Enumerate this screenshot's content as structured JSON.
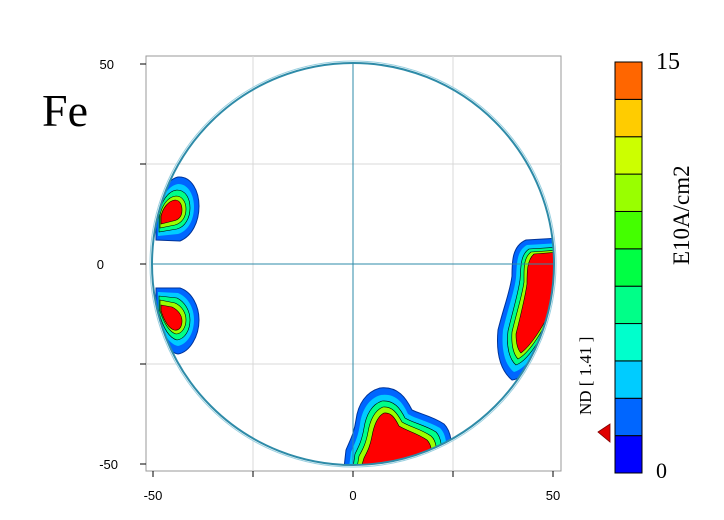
{
  "chart_data": {
    "type": "heatmap",
    "subtype": "pole-figure",
    "element_label": "Fe",
    "x_ticks": [
      "-50",
      "0",
      "50"
    ],
    "y_ticks": [
      "50",
      "0",
      "-50"
    ],
    "xlim": [
      -50,
      50
    ],
    "ylim": [
      -50,
      50
    ],
    "grid": true,
    "colorbar": {
      "max_label": "15",
      "min_label": "0",
      "unit_label": "E10A/cm2",
      "vmin": 0,
      "vmax": 15,
      "colors": [
        "#0000ff",
        "#0066ff",
        "#00ccff",
        "#00ffcc",
        "#00ff88",
        "#00ff44",
        "#44ff00",
        "#99ff00",
        "#ccff00",
        "#ffcc00",
        "#ff6600"
      ]
    },
    "direction_label": "ND [ 1.41 ]",
    "hotspots": [
      {
        "x": -45,
        "y": 14,
        "level": 15
      },
      {
        "x": -45,
        "y": -14,
        "level": 15
      },
      {
        "x": 44,
        "y": -8,
        "level": 15
      },
      {
        "x": 12,
        "y": -44,
        "level": 15
      }
    ]
  }
}
